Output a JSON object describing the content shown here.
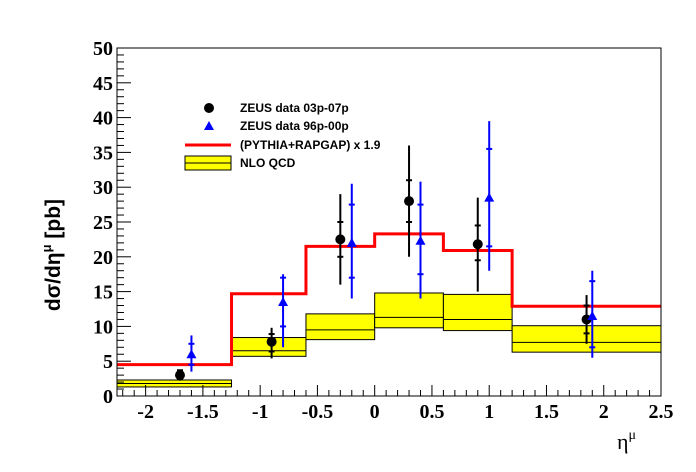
{
  "chart_data": {
    "type": "line",
    "xlabel": "η^μ",
    "ylabel": "dσ/dη^μ [pb]",
    "xlim": [
      -2.25,
      2.5
    ],
    "ylim": [
      0,
      50
    ],
    "x_ticks": [
      -2,
      -1.5,
      -1,
      -0.5,
      0,
      0.5,
      1,
      1.5,
      2,
      2.5
    ],
    "y_ticks": [
      0,
      5,
      10,
      15,
      20,
      25,
      30,
      35,
      40,
      45,
      50
    ],
    "bins": [
      [
        -2.25,
        -1.25
      ],
      [
        -1.25,
        -0.6
      ],
      [
        -0.6,
        0
      ],
      [
        0,
        0.6
      ],
      [
        0.6,
        1.2
      ],
      [
        1.2,
        2.5
      ]
    ],
    "legend": [
      {
        "label": "ZEUS data 03p-07p",
        "marker": "circle",
        "color": "#000000"
      },
      {
        "label": "ZEUS data 96p-00p",
        "marker": "triangle",
        "color": "#0000ff"
      },
      {
        "label": "(PYTHIA+RAPGAP) x 1.9",
        "marker": "line",
        "color": "#ff0000"
      },
      {
        "label": "NLO QCD",
        "marker": "band",
        "color": "#ffff00"
      }
    ],
    "series": [
      {
        "name": "ZEUS data 03p-07p",
        "color": "#000000",
        "points": [
          {
            "x": -1.7,
            "y": 3.0,
            "stat": [
              2.4,
              3.7
            ],
            "tot": [
              2.2,
              3.8
            ]
          },
          {
            "x": -0.9,
            "y": 7.8,
            "stat": [
              6.4,
              8.9
            ],
            "tot": [
              5.4,
              9.8
            ]
          },
          {
            "x": -0.3,
            "y": 22.5,
            "stat": [
              20.0,
              25.0
            ],
            "tot": [
              16.0,
              29.0
            ]
          },
          {
            "x": 0.3,
            "y": 28.0,
            "stat": [
              25.0,
              31.0
            ],
            "tot": [
              20.0,
              36.0
            ]
          },
          {
            "x": 0.9,
            "y": 21.8,
            "stat": [
              19.5,
              24.5
            ],
            "tot": [
              15.0,
              28.5
            ]
          },
          {
            "x": 1.85,
            "y": 11.0,
            "stat": [
              9.0,
              13.0
            ],
            "tot": [
              7.5,
              14.5
            ]
          }
        ]
      },
      {
        "name": "ZEUS data 96p-00p",
        "color": "#0000ff",
        "points": [
          {
            "x": -1.6,
            "y": 6.0,
            "stat": [
              4.5,
              7.5
            ],
            "tot": [
              3.5,
              8.7
            ]
          },
          {
            "x": -0.8,
            "y": 13.5,
            "stat": [
              10.0,
              17.0
            ],
            "tot": [
              7.0,
              17.5
            ]
          },
          {
            "x": -0.2,
            "y": 22.0,
            "stat": [
              17.0,
              27.5
            ],
            "tot": [
              14.0,
              30.5
            ]
          },
          {
            "x": 0.4,
            "y": 22.3,
            "stat": [
              17.5,
              27.5
            ],
            "tot": [
              14.0,
              30.8
            ]
          },
          {
            "x": 1.0,
            "y": 28.5,
            "stat": [
              21.5,
              35.5
            ],
            "tot": [
              18.0,
              39.5
            ]
          },
          {
            "x": 1.9,
            "y": 11.5,
            "stat": [
              7.0,
              16.5
            ],
            "tot": [
              5.5,
              18.0
            ]
          }
        ]
      },
      {
        "name": "(PYTHIA+RAPGAP) x 1.9",
        "color": "#ff0000",
        "values": [
          4.5,
          14.7,
          21.5,
          23.3,
          20.9,
          12.9
        ]
      },
      {
        "name": "NLO QCD",
        "color": "#ffff00",
        "central": [
          1.8,
          6.5,
          9.5,
          11.3,
          11.0,
          7.7
        ],
        "low": [
          1.3,
          5.7,
          8.1,
          9.8,
          9.4,
          6.3
        ],
        "high": [
          2.3,
          8.4,
          11.8,
          14.8,
          14.6,
          10.1
        ]
      }
    ]
  }
}
